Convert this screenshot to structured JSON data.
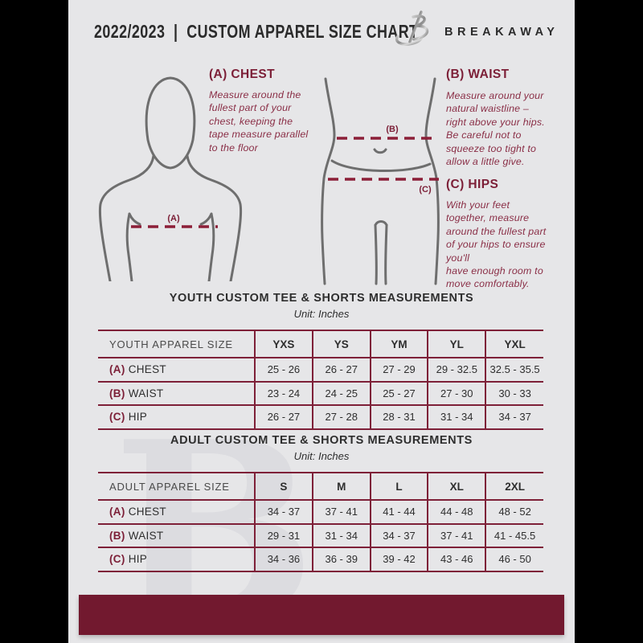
{
  "header": {
    "title": "2022/2023  |  CUSTOM APPAREL SIZE CHART",
    "brand": "BREAKAWAY",
    "logo_letter": "B"
  },
  "instructions": [
    {
      "title": "(A) CHEST",
      "body": "Measure around the\nfullest part of your\nchest, keeping the\ntape measure parallel\nto the floor"
    },
    {
      "title": "(B) WAIST",
      "body": "Measure around your\nnatural waistline –\nright above your hips.\nBe careful not to\nsqueeze too tight to\nallow a little give."
    },
    {
      "title": "(C) HIPS",
      "body": "With your feet\ntogether, measure\naround the fullest part\nof your hips to ensure\nyou'll\nhave enough room to\nmove comfortably."
    }
  ],
  "diagram": {
    "chest_label": "(A)",
    "waist_label": "(B)",
    "hips_label": "(C)"
  },
  "tables": [
    {
      "title": "YOUTH CUSTOM TEE & SHORTS MEASUREMENTS",
      "unit": "Unit: Inches",
      "header": [
        "YOUTH APPAREL SIZE",
        "YXS",
        "YS",
        "YM",
        "YL",
        "YXL"
      ],
      "rows": [
        {
          "prefix": "(A)",
          "label": "CHEST",
          "values": [
            "25 - 26",
            "26 - 27",
            "27 - 29",
            "29 - 32.5",
            "32.5 - 35.5"
          ]
        },
        {
          "prefix": "(B)",
          "label": "WAIST",
          "values": [
            "23 - 24",
            "24 - 25",
            "25 - 27",
            "27 - 30",
            "30 - 33"
          ]
        },
        {
          "prefix": "(C)",
          "label": "HIP",
          "values": [
            "26 - 27",
            "27 - 28",
            "28 - 31",
            "31 - 34",
            "34 - 37"
          ]
        }
      ]
    },
    {
      "title": "ADULT CUSTOM TEE & SHORTS MEASUREMENTS",
      "unit": "Unit: Inches",
      "header": [
        "ADULT APPAREL SIZE",
        "S",
        "M",
        "L",
        "XL",
        "2XL"
      ],
      "rows": [
        {
          "prefix": "(A)",
          "label": "CHEST",
          "values": [
            "34 - 37",
            "37 - 41",
            "41 - 44",
            "44 - 48",
            "48 - 52"
          ]
        },
        {
          "prefix": "(B)",
          "label": "WAIST",
          "values": [
            "29 - 31",
            "31 - 34",
            "34 - 37",
            "37 - 41",
            "41 - 45.5"
          ]
        },
        {
          "prefix": "(C)",
          "label": "HIP",
          "values": [
            "34 - 36",
            "36 - 39",
            "39 - 42",
            "43 - 46",
            "46 - 50"
          ]
        }
      ]
    }
  ],
  "colors": {
    "maroon_footer": "#72192f",
    "maroon_heading": "#7c1f37",
    "maroon_body_text": "#8a2e46",
    "table_line": "#7e2038",
    "figure_stroke": "#6e6e6e",
    "page_background": "#e6e6e8",
    "outer_background": "#000000"
  }
}
